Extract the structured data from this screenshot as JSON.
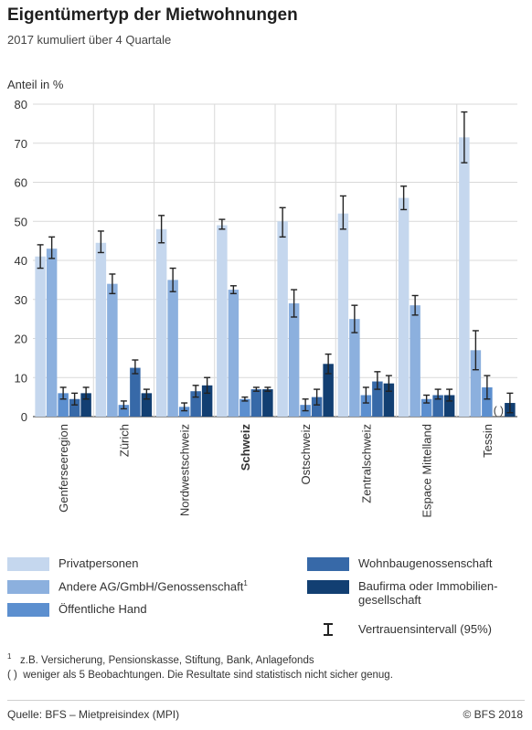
{
  "header": {
    "title": "Eigentümertyp der Mietwohnungen",
    "subtitle": "2017 kumuliert über 4 Quartale",
    "y_axis_label": "Anteil in %"
  },
  "chart_data": {
    "type": "bar",
    "categories": [
      "Genferseeregion",
      "Zürich",
      "Nordwestschweiz",
      "Schweiz",
      "Ostschweiz",
      "Zentralschweiz",
      "Espace Mittelland",
      "Tessin"
    ],
    "highlight_category": "Schweiz",
    "ylim": [
      0,
      80
    ],
    "yticks": [
      0,
      10,
      20,
      30,
      40,
      50,
      60,
      70,
      80
    ],
    "grid": true,
    "series": [
      {
        "name": "Privatpersonen",
        "color": "#c5d7ee",
        "values": [
          41,
          44.5,
          48,
          49,
          50,
          52,
          56,
          71.5
        ],
        "ci_low": [
          38,
          42,
          44.5,
          48,
          46,
          48,
          53,
          65
        ],
        "ci_high": [
          44,
          47.5,
          51.5,
          50.5,
          53.5,
          56.5,
          59,
          78
        ]
      },
      {
        "name": "Andere AG/GmbH/Genossenschaft",
        "color": "#8cb0de",
        "values": [
          43,
          34,
          35,
          32.5,
          29,
          25,
          28.5,
          17
        ],
        "ci_low": [
          40.5,
          31.5,
          32,
          31.5,
          25.5,
          21.5,
          26,
          12
        ],
        "ci_high": [
          46,
          36.5,
          38,
          33.5,
          32.5,
          28.5,
          31,
          22
        ]
      },
      {
        "name": "Öffentliche Hand",
        "color": "#5c8fcf",
        "values": [
          6,
          3,
          2.5,
          4.5,
          3,
          5.5,
          4.5,
          7.5
        ],
        "ci_low": [
          4.5,
          2,
          1.5,
          4,
          1.5,
          3.5,
          3.5,
          4.5
        ],
        "ci_high": [
          7.5,
          4,
          3.5,
          5,
          4.5,
          7.5,
          5.5,
          10.5
        ]
      },
      {
        "name": "Wohnbaugenossenschaft",
        "color": "#3769a8",
        "values": [
          4.5,
          12.5,
          6.5,
          7,
          5,
          9,
          5.5,
          null
        ],
        "ci_low": [
          3,
          11,
          5,
          6.5,
          3,
          7,
          4.5,
          null
        ],
        "ci_high": [
          6,
          14.5,
          8,
          7.5,
          7,
          11.5,
          7,
          null
        ]
      },
      {
        "name": "Baufirma oder Immobiliengesellschaft",
        "color": "#123f72",
        "values": [
          6,
          6,
          8,
          7,
          13.5,
          8.5,
          5.5,
          3.5
        ],
        "ci_low": [
          4.5,
          4.5,
          6,
          6.5,
          11,
          6.5,
          4,
          1
        ],
        "ci_high": [
          7.5,
          7,
          10,
          7.5,
          16,
          10.5,
          7,
          6
        ]
      }
    ],
    "annotations": [
      {
        "category": "Tessin",
        "series": "Wohnbaugenossenschaft",
        "text": "( )"
      }
    ]
  },
  "legend": {
    "items": [
      {
        "label": "Privatpersonen",
        "color": "#c5d7ee"
      },
      {
        "label": "Andere AG/GmbH/Genossenschaft",
        "sup": "1",
        "color": "#8cb0de"
      },
      {
        "label": "Öffentliche Hand",
        "color": "#5c8fcf"
      },
      {
        "label": "Wohnbaugenossenschaft",
        "color": "#3769a8"
      },
      {
        "label_line1": "Baufirma oder Immobilien-",
        "label_line2": "gesellschaft",
        "color": "#123f72"
      }
    ],
    "ci_label": "Vertrauensintervall (95%)"
  },
  "notes": {
    "note1_marker": "1",
    "note1_text": "z.B. Versicherung, Pensionskasse, Stiftung, Bank, Anlagefonds",
    "note2_marker": "( )",
    "note2_text": "weniger als 5 Beobachtungen. Die Resultate sind statistisch nicht sicher genug."
  },
  "footer": {
    "source": "Quelle: BFS – Mietpreisindex (MPI)",
    "copyright": "© BFS 2018"
  }
}
